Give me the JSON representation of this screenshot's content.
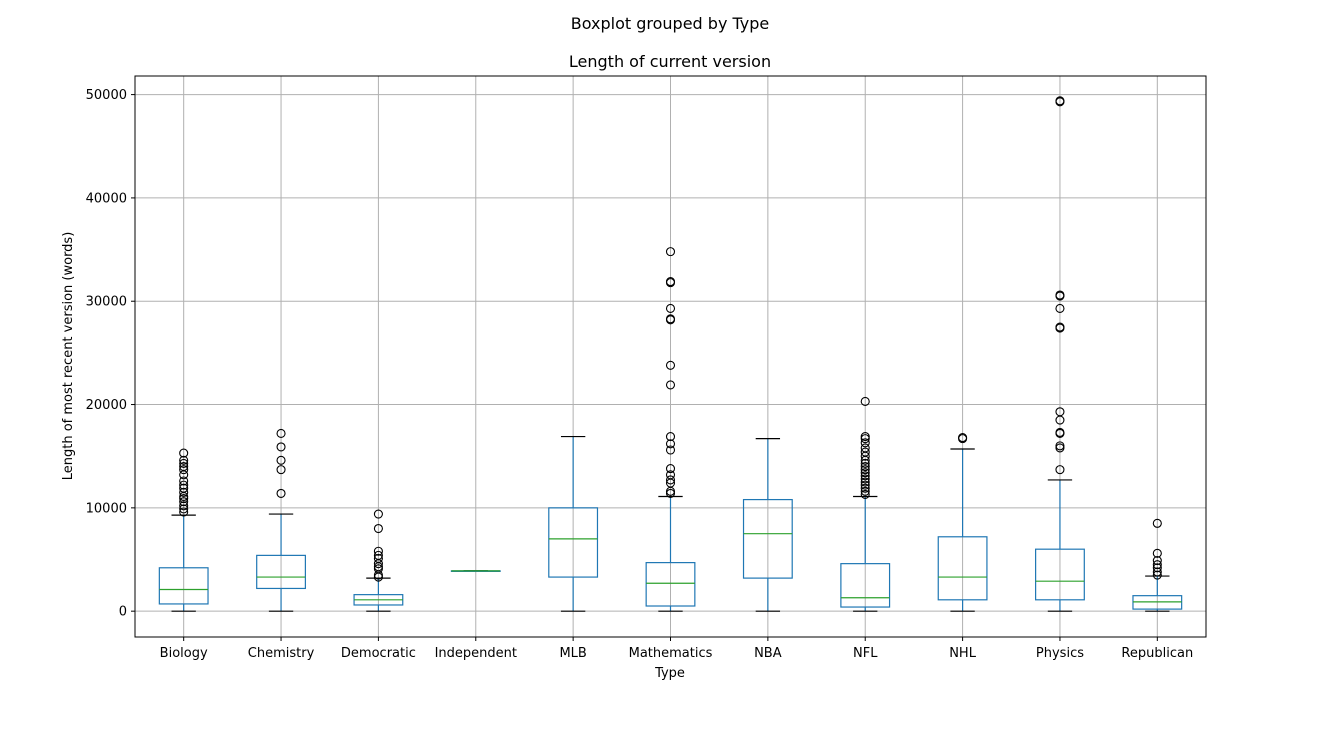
{
  "chart_data": {
    "type": "boxplot",
    "suptitle": "Boxplot grouped by Type",
    "title": "Length of current version",
    "xlabel": "Type",
    "ylabel": "Length of most recent version (words)",
    "ylim": [
      -2500,
      51800
    ],
    "yticks": [
      0,
      10000,
      20000,
      30000,
      40000,
      50000
    ],
    "grid": true,
    "colors": {
      "box": "#1f77b4",
      "median": "#2ca02c",
      "whisker_cap": "#000000",
      "flier": "#000000",
      "grid": "#b0b0b0"
    },
    "categories": [
      "Biology",
      "Chemistry",
      "Democratic",
      "Independent",
      "MLB",
      "Mathematics",
      "NBA",
      "NFL",
      "NHL",
      "Physics",
      "Republican"
    ],
    "boxes": [
      {
        "name": "Biology",
        "whislo": 0,
        "q1": 700,
        "med": 2100,
        "q3": 4200,
        "whishi": 9300,
        "fliers": [
          9600,
          9900,
          10200,
          10600,
          10900,
          11100,
          11500,
          11900,
          12200,
          12600,
          13200,
          13700,
          14000,
          14300,
          14600,
          15300
        ]
      },
      {
        "name": "Chemistry",
        "whislo": 0,
        "q1": 2200,
        "med": 3300,
        "q3": 5400,
        "whishi": 9400,
        "fliers": [
          11400,
          13700,
          14600,
          15900,
          17200
        ]
      },
      {
        "name": "Democratic",
        "whislo": 0,
        "q1": 600,
        "med": 1100,
        "q3": 1600,
        "whishi": 3200,
        "fliers": [
          3300,
          3500,
          4100,
          4300,
          4600,
          5100,
          5400,
          5800,
          8000,
          9400
        ]
      },
      {
        "name": "Independent",
        "whislo": 3900,
        "q1": 3900,
        "med": 3900,
        "q3": 3900,
        "whishi": 3900,
        "fliers": []
      },
      {
        "name": "MLB",
        "whislo": 0,
        "q1": 3300,
        "med": 7000,
        "q3": 10000,
        "whishi": 16900,
        "fliers": []
      },
      {
        "name": "Mathematics",
        "whislo": 0,
        "q1": 500,
        "med": 2700,
        "q3": 4700,
        "whishi": 11100,
        "fliers": [
          11400,
          11600,
          12400,
          12700,
          13200,
          13800,
          15600,
          16200,
          16900,
          21900,
          23800,
          28200,
          28300,
          29300,
          31800,
          31900,
          34800
        ]
      },
      {
        "name": "NBA",
        "whislo": 0,
        "q1": 3200,
        "med": 7500,
        "q3": 10800,
        "whishi": 16700,
        "fliers": []
      },
      {
        "name": "NFL",
        "whislo": 0,
        "q1": 400,
        "med": 1300,
        "q3": 4600,
        "whishi": 11100,
        "fliers": [
          11300,
          11600,
          11900,
          12200,
          12500,
          12800,
          13100,
          13400,
          13700,
          14000,
          14300,
          14600,
          15000,
          15400,
          15800,
          16300,
          16700,
          16900,
          20300
        ]
      },
      {
        "name": "NHL",
        "whislo": 0,
        "q1": 1100,
        "med": 3300,
        "q3": 7200,
        "whishi": 15700,
        "fliers": [
          16700,
          16800
        ]
      },
      {
        "name": "Physics",
        "whislo": 0,
        "q1": 1100,
        "med": 2900,
        "q3": 6000,
        "whishi": 12700,
        "fliers": [
          13700,
          15800,
          16000,
          17200,
          17300,
          18500,
          19300,
          27400,
          27500,
          29300,
          30500,
          30600,
          49300,
          49400
        ]
      },
      {
        "name": "Republican",
        "whislo": 0,
        "q1": 200,
        "med": 900,
        "q3": 1500,
        "whishi": 3400,
        "fliers": [
          3500,
          3800,
          4200,
          4500,
          4900,
          5600,
          8500
        ]
      }
    ]
  }
}
